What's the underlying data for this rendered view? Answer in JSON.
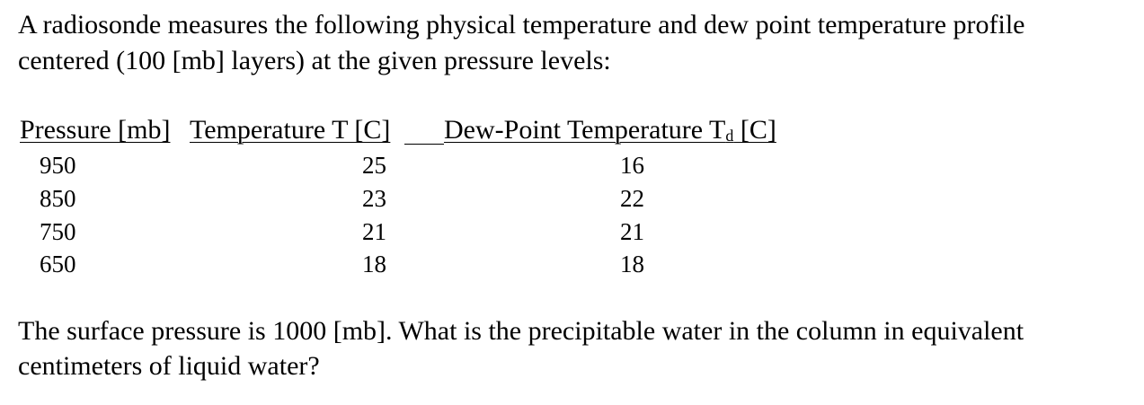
{
  "intro": {
    "line1": "A radiosonde measures the following physical temperature and dew point temperature profile",
    "line2": "centered (100 [mb] layers) at the given pressure levels:"
  },
  "table": {
    "headers": {
      "pressure": "Pressure [mb]",
      "temperature": "Temperature T [C]",
      "dew_point_prefix": "Dew-Point Temperature T",
      "dew_point_subscript": "d",
      "dew_point_suffix": " [C]"
    },
    "rows": [
      {
        "pressure": "950",
        "temperature": "25",
        "dew_point": "16"
      },
      {
        "pressure": "850",
        "temperature": "23",
        "dew_point": "22"
      },
      {
        "pressure": "750",
        "temperature": "21",
        "dew_point": "21"
      },
      {
        "pressure": "650",
        "temperature": "18",
        "dew_point": "18"
      }
    ]
  },
  "question": {
    "line1": "The surface pressure is 1000 [mb]. What is the precipitable water in the column in equivalent",
    "line2": "centimeters of liquid water?"
  }
}
